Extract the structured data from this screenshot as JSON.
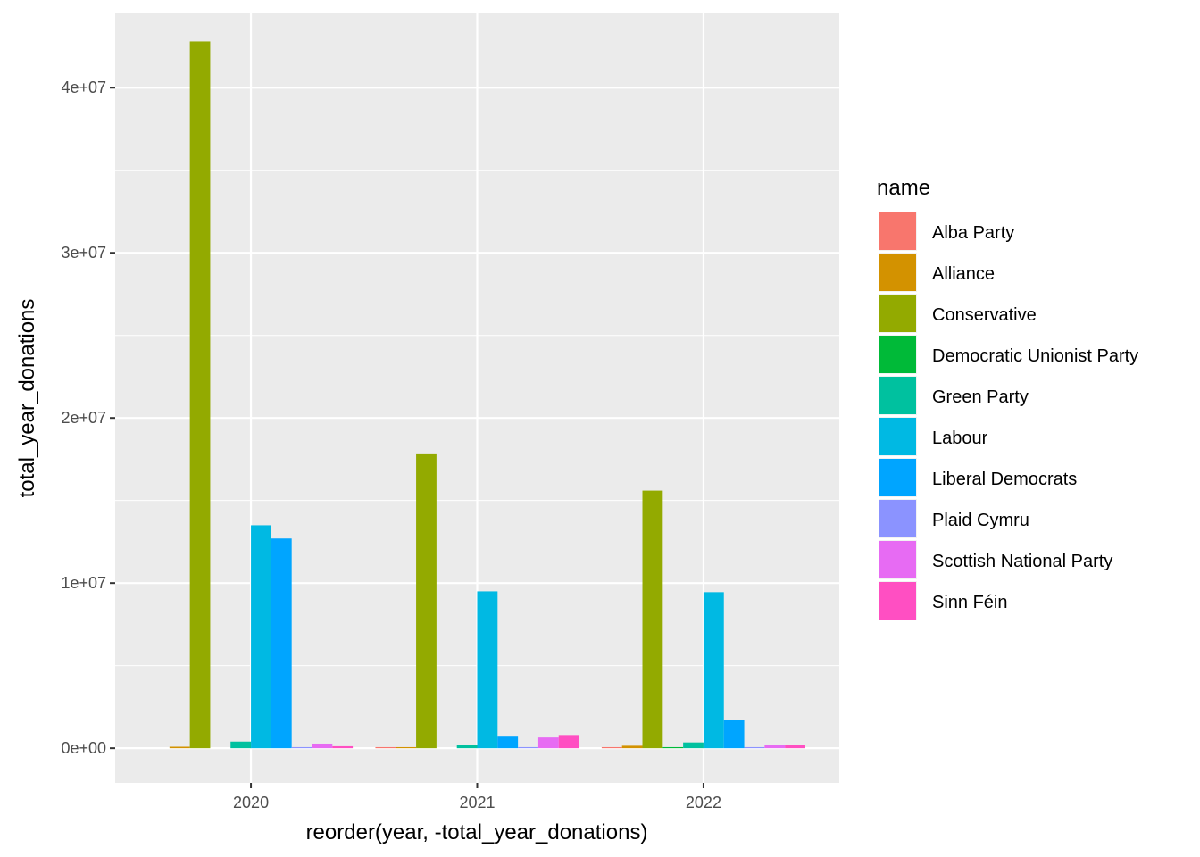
{
  "chart_data": {
    "type": "bar",
    "xlabel": "reorder(year, -total_year_donations)",
    "ylabel": "total_year_donations",
    "categories": [
      "2020",
      "2021",
      "2022"
    ],
    "ylim": [
      -2100000,
      44500000
    ],
    "yticks": [
      0,
      10000000,
      20000000,
      30000000,
      40000000
    ],
    "ytick_labels": [
      "0e+00",
      "1e+07",
      "2e+07",
      "3e+07",
      "4e+07"
    ],
    "grid": true,
    "legend": {
      "title": "name",
      "position": "right"
    },
    "series": [
      {
        "name": "Alba Party",
        "color": "#F8766D",
        "values": [
          null,
          20000,
          50000
        ]
      },
      {
        "name": "Alliance",
        "color": "#D39200",
        "values": [
          90000,
          40000,
          150000
        ]
      },
      {
        "name": "Conservative",
        "color": "#93AA00",
        "values": [
          42800000,
          17800000,
          15600000
        ]
      },
      {
        "name": "Democratic Unionist Party",
        "color": "#00BA38",
        "values": [
          null,
          null,
          50000
        ]
      },
      {
        "name": "Green Party",
        "color": "#00C19F",
        "values": [
          400000,
          200000,
          350000
        ]
      },
      {
        "name": "Labour",
        "color": "#00B9E3",
        "values": [
          13500000,
          9500000,
          9450000
        ]
      },
      {
        "name": "Liberal Democrats",
        "color": "#00A5FF",
        "values": [
          12700000,
          700000,
          1700000
        ]
      },
      {
        "name": "Plaid Cymru",
        "color": "#8B93FF",
        "values": [
          30000,
          60000,
          30000
        ]
      },
      {
        "name": "Scottish National Party",
        "color": "#E76BF3",
        "values": [
          280000,
          650000,
          220000
        ]
      },
      {
        "name": "Sinn Féin",
        "color": "#FF4FC2",
        "values": [
          120000,
          800000,
          200000
        ]
      }
    ]
  }
}
